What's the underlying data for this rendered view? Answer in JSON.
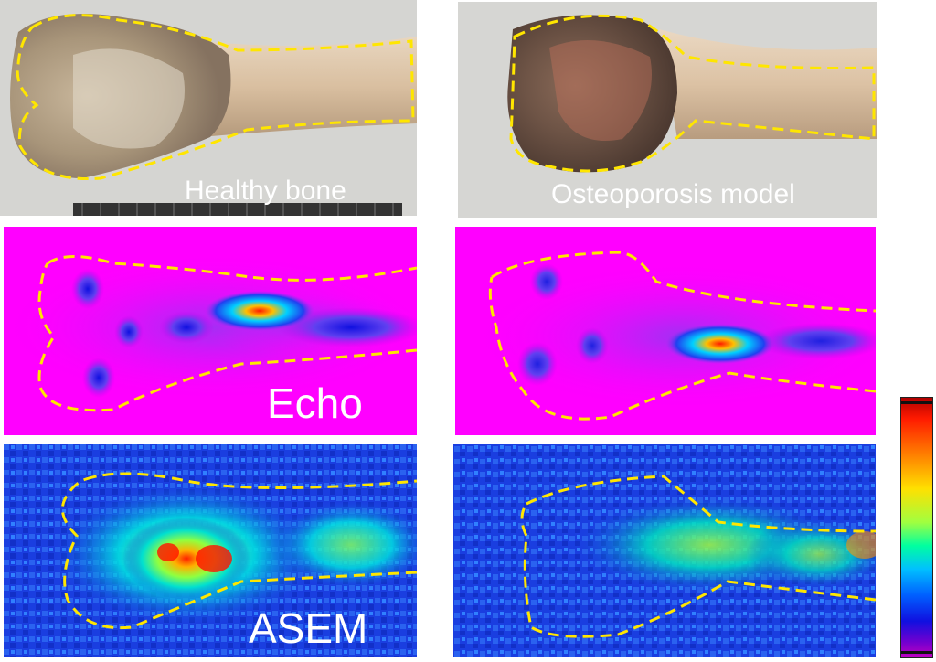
{
  "figure": {
    "photo_labels": {
      "healthy": "Healthy bone",
      "osteoporosis": "Osteoporosis model"
    },
    "row_labels": {
      "echo": "Echo",
      "asem": "ASEM"
    },
    "outline_color": "#ffe600",
    "echo_background_color": "#ff00ff",
    "asem_background_color": "#1a3ee0",
    "colorbar_colors": [
      "#b00000",
      "#ff1a00",
      "#ff8000",
      "#ffe000",
      "#a0ff40",
      "#00ffa0",
      "#00c0ff",
      "#0060ff",
      "#1010e0",
      "#7000d0",
      "#c000c0"
    ]
  }
}
